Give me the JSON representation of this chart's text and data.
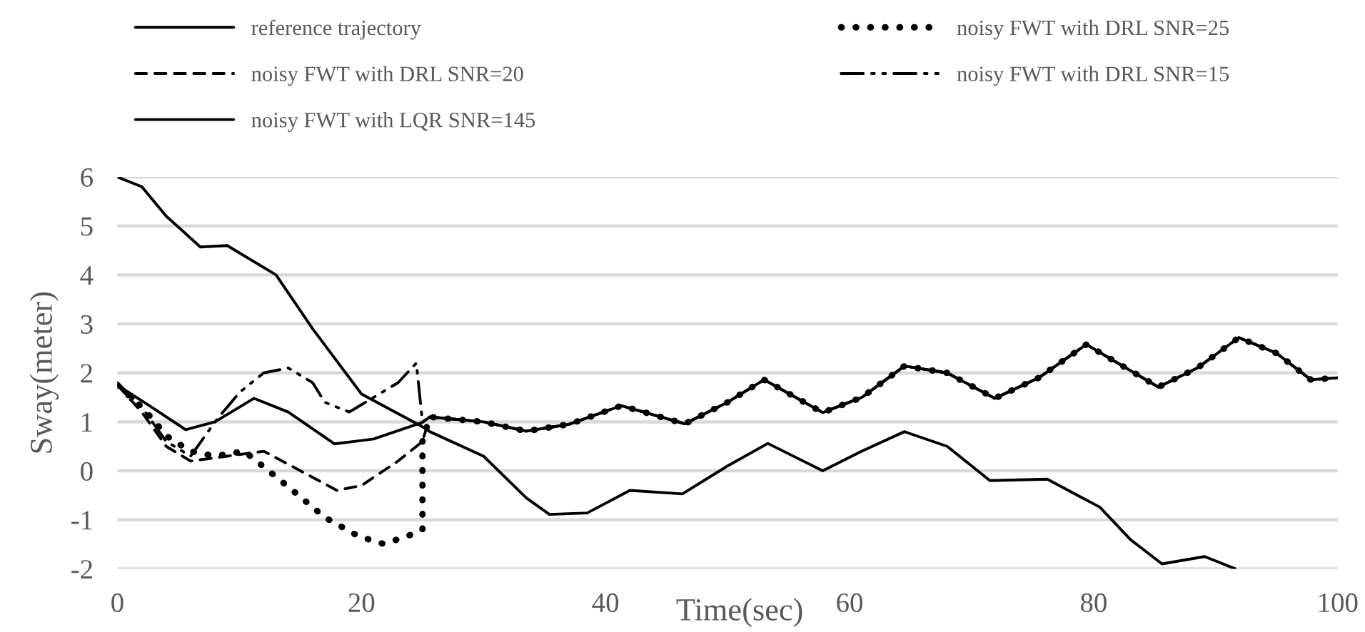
{
  "chart_data": {
    "type": "line",
    "xlabel": "Time(sec)",
    "ylabel": "Sway(meter)",
    "xlim": [
      0,
      100
    ],
    "xticks": [
      0,
      20,
      40,
      60,
      80,
      100
    ],
    "ylim": [
      -2,
      6
    ],
    "yticks": [
      -2,
      -1,
      0,
      1,
      2,
      3,
      4,
      5,
      6
    ],
    "grid": "y",
    "legend": "top",
    "marker": "none",
    "series": [
      {
        "name": "reference trajectory",
        "color": "#000000",
        "line_style": "solid",
        "x": [
          0,
          2.5,
          5.6,
          8,
          11.2,
          14,
          17.8,
          21,
          25,
          25.6,
          30,
          33.5,
          37,
          41.3,
          46.5,
          50,
          53,
          57.8,
          61,
          64.5,
          68,
          71.9,
          75.5,
          79.4,
          85.3,
          88.5,
          91.9,
          95,
          97.8,
          100
        ],
        "values": [
          1.75,
          1.35,
          0.84,
          1.0,
          1.48,
          1.2,
          0.55,
          0.65,
          0.99,
          1.1,
          1.0,
          0.81,
          0.95,
          1.33,
          0.96,
          1.4,
          1.86,
          1.19,
          1.5,
          2.14,
          2.0,
          1.48,
          1.9,
          2.58,
          1.71,
          2.1,
          2.72,
          2.4,
          1.86,
          1.9
        ]
      },
      {
        "name": "noisy FWT with DRL SNR=25",
        "color": "#000000",
        "line_style": "dotted",
        "x": [
          0,
          2.1,
          4.1,
          6,
          8,
          10.4,
          12.3,
          14.7,
          17,
          19.8,
          21.8,
          23.7,
          25,
          25,
          25.6,
          30,
          33.5,
          37,
          41.3,
          46.5,
          50,
          53,
          57.8,
          61,
          64.5,
          68,
          71.9,
          75.5,
          79.4,
          85.3,
          88.5,
          91.9,
          95,
          97.8,
          100
        ],
        "values": [
          1.75,
          1.28,
          0.7,
          0.4,
          0.3,
          0.4,
          0.02,
          -0.47,
          -0.95,
          -1.34,
          -1.49,
          -1.34,
          -1.2,
          0.6,
          1.1,
          1.0,
          0.81,
          0.95,
          1.33,
          0.96,
          1.4,
          1.86,
          1.19,
          1.5,
          2.14,
          2.0,
          1.48,
          1.9,
          2.58,
          1.71,
          2.1,
          2.72,
          2.4,
          1.86,
          1.9
        ]
      },
      {
        "name": "noisy FWT with DRL SNR=20",
        "color": "#000000",
        "line_style": "dashed",
        "x": [
          0,
          2,
          4,
          6,
          9,
          12,
          15,
          18,
          20,
          23,
          25,
          25.6,
          30,
          33.5,
          37,
          41.3,
          46.5,
          50,
          53,
          57.8,
          61,
          64.5,
          68,
          71.9,
          75.5,
          79.4,
          85.3,
          88.5,
          91.9,
          95,
          97.8,
          100
        ],
        "values": [
          1.75,
          1.2,
          0.5,
          0.2,
          0.3,
          0.4,
          0.0,
          -0.4,
          -0.3,
          0.2,
          0.6,
          1.1,
          1.0,
          0.81,
          0.95,
          1.33,
          0.96,
          1.4,
          1.86,
          1.19,
          1.5,
          2.14,
          2.0,
          1.48,
          1.9,
          2.58,
          1.71,
          2.1,
          2.72,
          2.4,
          1.86,
          1.9
        ]
      },
      {
        "name": "noisy FWT with DRL SNR=15",
        "color": "#000000",
        "line_style": "dashdot",
        "x": [
          0,
          2,
          4,
          6,
          8,
          10,
          12,
          14,
          16,
          17,
          19,
          21,
          23,
          24.5,
          25,
          25.6,
          30,
          33.5,
          37,
          41.3,
          46.5,
          50,
          53,
          57.8,
          61,
          64.5,
          68,
          71.9,
          75.5,
          79.4,
          85.3,
          88.5,
          91.9,
          95,
          97.8,
          100
        ],
        "values": [
          1.8,
          1.3,
          0.6,
          0.3,
          1.0,
          1.6,
          2.0,
          2.1,
          1.8,
          1.4,
          1.2,
          1.5,
          1.8,
          2.2,
          1.0,
          1.1,
          1.0,
          0.81,
          0.95,
          1.33,
          0.96,
          1.4,
          1.86,
          1.19,
          1.5,
          2.14,
          2.0,
          1.48,
          1.9,
          2.58,
          1.71,
          2.1,
          2.72,
          2.4,
          1.86,
          1.9
        ]
      },
      {
        "name": "noisy FWT with LQR SNR=145",
        "color": "#000000",
        "line_style": "solid",
        "x": [
          0,
          2,
          4,
          6.8,
          9,
          13,
          16,
          20,
          25,
          25.6,
          30,
          33.5,
          35.4,
          38.5,
          42,
          46.3,
          50,
          53.3,
          57.8,
          61,
          64.5,
          68,
          71.5,
          76.2,
          80.5,
          83,
          85.6,
          89.1,
          91.6
        ],
        "values": [
          6,
          5.8,
          5.2,
          4.57,
          4.6,
          4.0,
          2.9,
          1.57,
          0.9,
          0.8,
          0.3,
          -0.55,
          -0.89,
          -0.86,
          -0.4,
          -0.47,
          0.1,
          0.56,
          0.0,
          0.4,
          0.8,
          0.5,
          -0.2,
          -0.17,
          -0.74,
          -1.4,
          -1.9,
          -1.75,
          -2.0
        ]
      }
    ]
  }
}
